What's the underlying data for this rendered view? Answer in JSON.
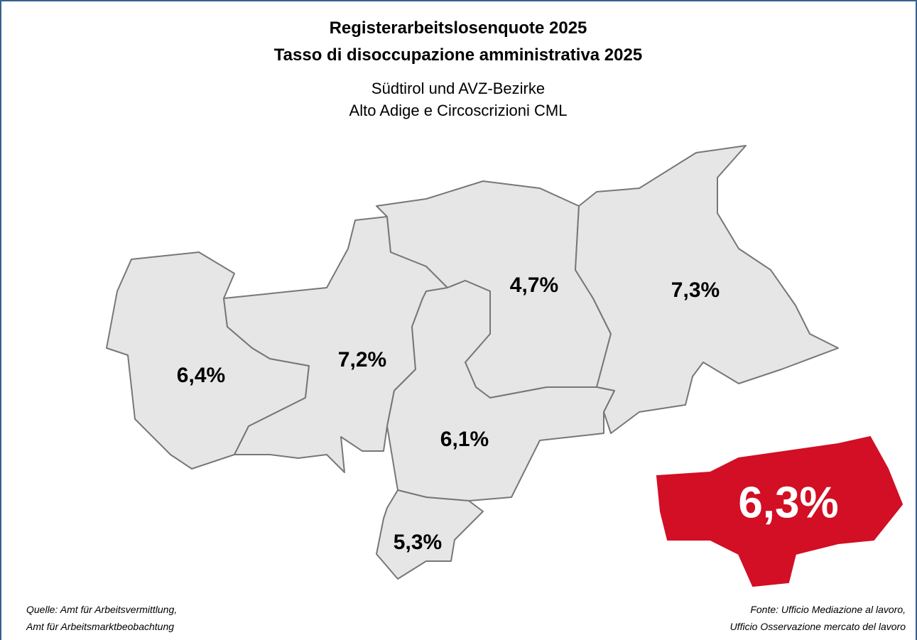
{
  "title": [
    "Registerarbeitslosenquote 2025",
    "Tasso di disoccupazione amministrativa 2025"
  ],
  "subtitle": [
    "Südtirol und AVZ-Bezirke",
    "Alto Adige e Circoscrizioni CML"
  ],
  "regions": [
    {
      "label": "6,4%"
    },
    {
      "label": "7,2%"
    },
    {
      "label": "4,7%"
    },
    {
      "label": "7,3%"
    },
    {
      "label": "6,1%"
    },
    {
      "label": "5,3%"
    }
  ],
  "total": {
    "label": "6,3%"
  },
  "source_de": [
    "Quelle: Amt für Arbeitsvermittlung,",
    "Amt für Arbeitsmarktbeobachtung"
  ],
  "source_it": [
    "Fonte: Ufficio Mediazione al lavoro,",
    "Ufficio Osservazione mercato del lavoro"
  ]
}
